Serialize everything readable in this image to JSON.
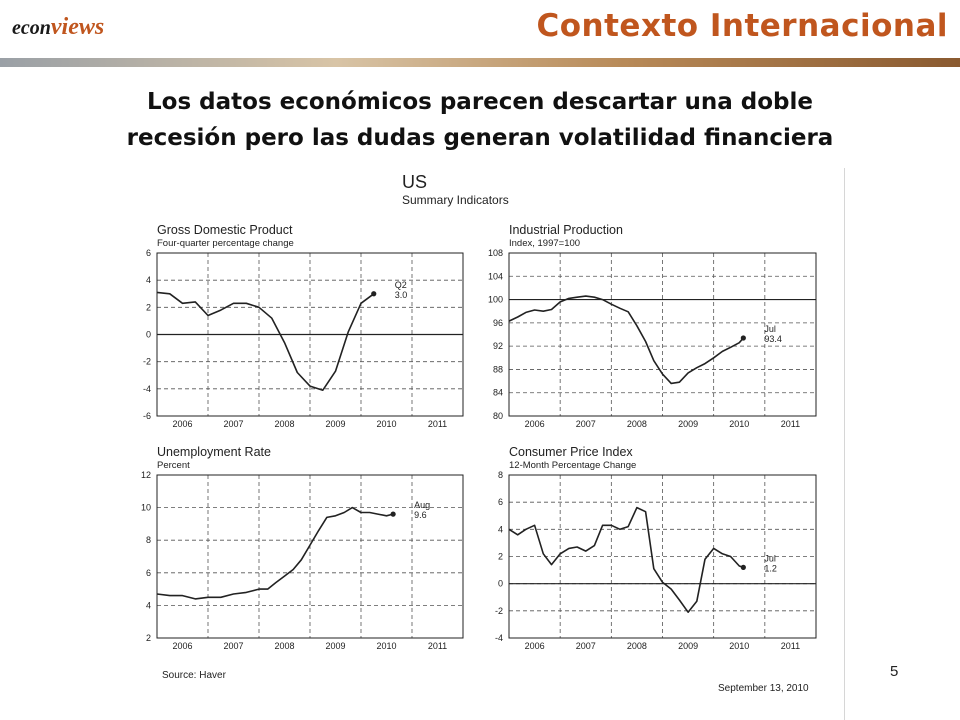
{
  "header": {
    "logo_prefix": "econ",
    "logo_suffix": "views",
    "title": "Contexto Internacional"
  },
  "subtitle": {
    "line1": "Los datos económicos parecen descartar una doble",
    "line2": "recesión pero las dudas generan volatilidad financiera"
  },
  "figure": {
    "title": "US",
    "subtitle": "Summary Indicators",
    "source": "Source:  Haver",
    "date": "September 13, 2010"
  },
  "page_number": "5",
  "colors": {
    "accent": "#c0561e",
    "line": "#222222",
    "grid_dash": "#555555"
  },
  "chart_data": [
    {
      "type": "line",
      "title": "Gross Domestic Product",
      "subtitle": "Four-quarter percentage change",
      "x_ticks": [
        "2006",
        "2007",
        "2008",
        "2009",
        "2010",
        "2011"
      ],
      "xlim": [
        2006,
        2012
      ],
      "ylim": [
        -6,
        6
      ],
      "y_ticks": [
        -6,
        -4,
        -2,
        0,
        2,
        4,
        6
      ],
      "reference_line": 0,
      "annotation": [
        "Q2",
        "3.0"
      ],
      "x": [
        2006.0,
        2006.25,
        2006.5,
        2006.75,
        2007.0,
        2007.25,
        2007.5,
        2007.75,
        2008.0,
        2008.25,
        2008.5,
        2008.75,
        2009.0,
        2009.25,
        2009.5,
        2009.75,
        2010.0,
        2010.25
      ],
      "y": [
        3.1,
        3.0,
        2.3,
        2.4,
        1.4,
        1.8,
        2.3,
        2.3,
        2.0,
        1.2,
        -0.6,
        -2.8,
        -3.8,
        -4.1,
        -2.7,
        0.2,
        2.3,
        3.0
      ]
    },
    {
      "type": "line",
      "title": "Industrial Production",
      "subtitle": "Index, 1997=100",
      "x_ticks": [
        "2006",
        "2007",
        "2008",
        "2009",
        "2010",
        "2011"
      ],
      "xlim": [
        2006,
        2012
      ],
      "ylim": [
        80,
        108
      ],
      "y_ticks": [
        80,
        84,
        88,
        92,
        96,
        100,
        104,
        108
      ],
      "reference_line": 100,
      "annotation": [
        "Jul",
        "93.4"
      ],
      "x": [
        2006.0,
        2006.17,
        2006.33,
        2006.5,
        2006.67,
        2006.83,
        2007.0,
        2007.17,
        2007.33,
        2007.5,
        2007.67,
        2007.83,
        2008.0,
        2008.17,
        2008.33,
        2008.5,
        2008.67,
        2008.83,
        2009.0,
        2009.17,
        2009.33,
        2009.5,
        2009.67,
        2009.83,
        2010.0,
        2010.17,
        2010.33,
        2010.5,
        2010.58
      ],
      "y": [
        96.3,
        97.0,
        97.8,
        98.2,
        98.0,
        98.3,
        99.6,
        100.2,
        100.4,
        100.6,
        100.4,
        100.0,
        99.2,
        98.5,
        97.9,
        95.5,
        92.8,
        89.5,
        87.2,
        85.6,
        85.8,
        87.4,
        88.3,
        89.0,
        90.0,
        91.1,
        91.8,
        92.6,
        93.4
      ]
    },
    {
      "type": "line",
      "title": "Unemployment Rate",
      "subtitle": "Percent",
      "x_ticks": [
        "2006",
        "2007",
        "2008",
        "2009",
        "2010",
        "2011"
      ],
      "xlim": [
        2006,
        2012
      ],
      "ylim": [
        2,
        12
      ],
      "y_ticks": [
        2,
        4,
        6,
        8,
        10,
        12
      ],
      "reference_line": null,
      "annotation": [
        "Aug",
        "9.6"
      ],
      "x": [
        2006.0,
        2006.25,
        2006.5,
        2006.75,
        2007.0,
        2007.25,
        2007.5,
        2007.75,
        2008.0,
        2008.17,
        2008.33,
        2008.5,
        2008.67,
        2008.83,
        2009.0,
        2009.17,
        2009.33,
        2009.5,
        2009.67,
        2009.83,
        2010.0,
        2010.17,
        2010.33,
        2010.5,
        2010.63
      ],
      "y": [
        4.7,
        4.6,
        4.6,
        4.4,
        4.5,
        4.5,
        4.7,
        4.8,
        5.0,
        5.0,
        5.4,
        5.8,
        6.2,
        6.8,
        7.7,
        8.6,
        9.4,
        9.5,
        9.7,
        10.0,
        9.7,
        9.7,
        9.6,
        9.5,
        9.6
      ]
    },
    {
      "type": "line",
      "title": "Consumer Price Index",
      "subtitle": "12-Month Percentage Change",
      "x_ticks": [
        "2006",
        "2007",
        "2008",
        "2009",
        "2010",
        "2011"
      ],
      "xlim": [
        2006,
        2012
      ],
      "ylim": [
        -4,
        8
      ],
      "y_ticks": [
        -4,
        -2,
        0,
        2,
        4,
        6,
        8
      ],
      "reference_line": 0,
      "annotation": [
        "Jul",
        "1.2"
      ],
      "x": [
        2006.0,
        2006.17,
        2006.33,
        2006.5,
        2006.67,
        2006.83,
        2007.0,
        2007.17,
        2007.33,
        2007.5,
        2007.67,
        2007.83,
        2008.0,
        2008.17,
        2008.33,
        2008.5,
        2008.67,
        2008.83,
        2009.0,
        2009.17,
        2009.33,
        2009.5,
        2009.67,
        2009.83,
        2010.0,
        2010.17,
        2010.33,
        2010.5,
        2010.58
      ],
      "y": [
        4.0,
        3.6,
        4.0,
        4.3,
        2.2,
        1.4,
        2.2,
        2.6,
        2.7,
        2.4,
        2.8,
        4.3,
        4.3,
        4.0,
        4.2,
        5.6,
        5.3,
        1.1,
        0.1,
        -0.4,
        -1.2,
        -2.1,
        -1.3,
        1.8,
        2.6,
        2.2,
        2.0,
        1.3,
        1.2
      ]
    }
  ]
}
